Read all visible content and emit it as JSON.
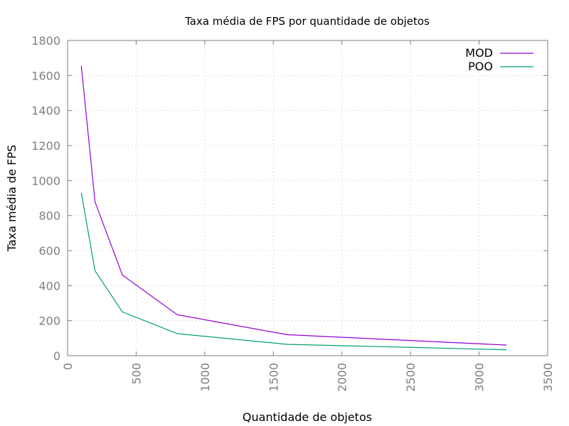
{
  "chart_data": {
    "type": "line",
    "title": "Taxa média de FPS por quantidade de objetos",
    "xlabel": "Quantidade de objetos",
    "ylabel": "Taxa média de FPS",
    "xlim": [
      0,
      3500
    ],
    "ylim": [
      0,
      1800
    ],
    "xticks": [
      0,
      500,
      1000,
      1500,
      2000,
      2500,
      3000,
      3500
    ],
    "yticks": [
      0,
      200,
      400,
      600,
      800,
      1000,
      1200,
      1400,
      1600,
      1800
    ],
    "x": [
      100,
      200,
      400,
      800,
      1600,
      3200
    ],
    "series": [
      {
        "name": "MOD",
        "color": "#9400d3",
        "values": [
          1655,
          878,
          460,
          234,
          120,
          61
        ]
      },
      {
        "name": "POO",
        "color": "#009e73",
        "values": [
          930,
          485,
          250,
          126,
          65,
          34
        ]
      }
    ],
    "grid": true,
    "legend_position": "top-right"
  }
}
